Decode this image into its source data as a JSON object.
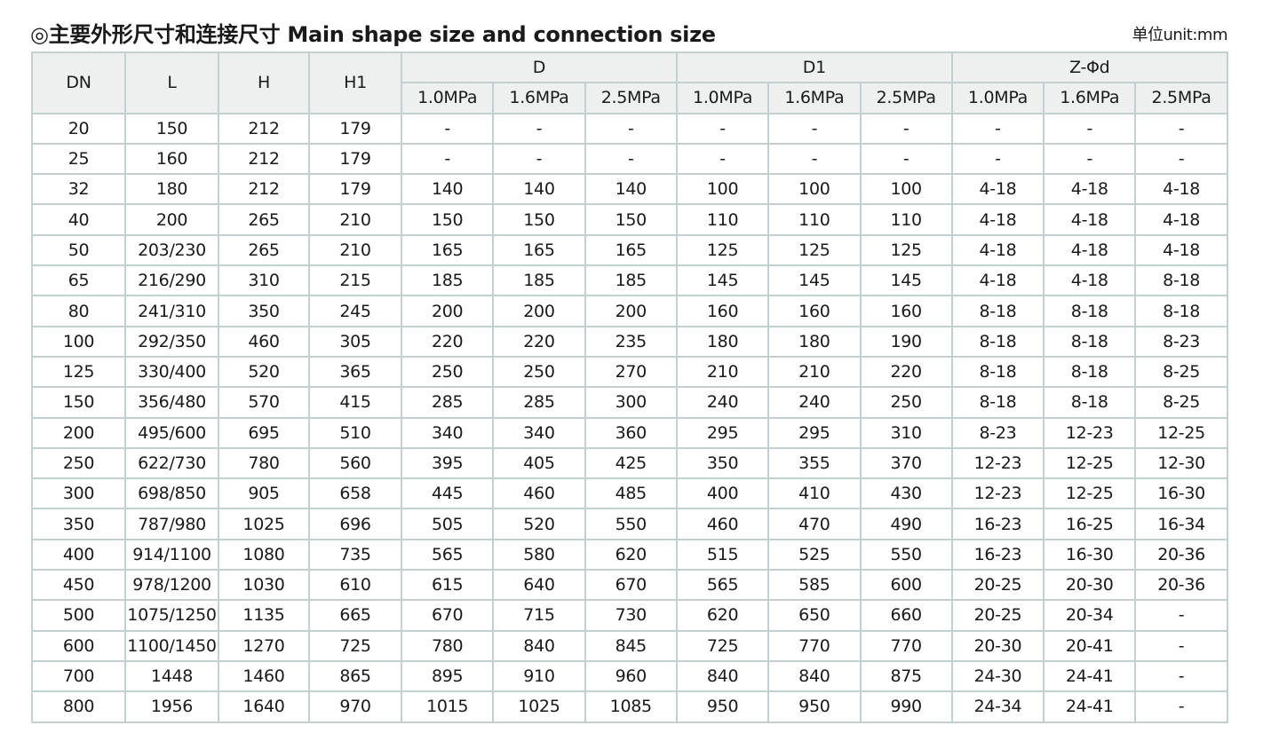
{
  "title": "◎主要外形尺寸和连接尺寸 Main shape size and connection size",
  "unit": "单位unit:mm",
  "table": {
    "headers": [
      "DN",
      "L",
      "H",
      "H1"
    ],
    "groups": [
      "D",
      "D1",
      "Z-Φd"
    ],
    "pressures": [
      "1.0MPa",
      "1.6MPa",
      "2.5MPa"
    ],
    "rows": [
      [
        "20",
        "150",
        "212",
        "179",
        "-",
        "-",
        "-",
        "-",
        "-",
        "-",
        "-",
        "-",
        "-"
      ],
      [
        "25",
        "160",
        "212",
        "179",
        "-",
        "-",
        "-",
        "-",
        "-",
        "-",
        "-",
        "-",
        "-"
      ],
      [
        "32",
        "180",
        "212",
        "179",
        "140",
        "140",
        "140",
        "100",
        "100",
        "100",
        "4-18",
        "4-18",
        "4-18"
      ],
      [
        "40",
        "200",
        "265",
        "210",
        "150",
        "150",
        "150",
        "110",
        "110",
        "110",
        "4-18",
        "4-18",
        "4-18"
      ],
      [
        "50",
        "203/230",
        "265",
        "210",
        "165",
        "165",
        "165",
        "125",
        "125",
        "125",
        "4-18",
        "4-18",
        "4-18"
      ],
      [
        "65",
        "216/290",
        "310",
        "215",
        "185",
        "185",
        "185",
        "145",
        "145",
        "145",
        "4-18",
        "4-18",
        "8-18"
      ],
      [
        "80",
        "241/310",
        "350",
        "245",
        "200",
        "200",
        "200",
        "160",
        "160",
        "160",
        "8-18",
        "8-18",
        "8-18"
      ],
      [
        "100",
        "292/350",
        "460",
        "305",
        "220",
        "220",
        "235",
        "180",
        "180",
        "190",
        "8-18",
        "8-18",
        "8-23"
      ],
      [
        "125",
        "330/400",
        "520",
        "365",
        "250",
        "250",
        "270",
        "210",
        "210",
        "220",
        "8-18",
        "8-18",
        "8-25"
      ],
      [
        "150",
        "356/480",
        "570",
        "415",
        "285",
        "285",
        "300",
        "240",
        "240",
        "250",
        "8-18",
        "8-18",
        "8-25"
      ],
      [
        "200",
        "495/600",
        "695",
        "510",
        "340",
        "340",
        "360",
        "295",
        "295",
        "310",
        "8-23",
        "12-23",
        "12-25"
      ],
      [
        "250",
        "622/730",
        "780",
        "560",
        "395",
        "405",
        "425",
        "350",
        "355",
        "370",
        "12-23",
        "12-25",
        "12-30"
      ],
      [
        "300",
        "698/850",
        "905",
        "658",
        "445",
        "460",
        "485",
        "400",
        "410",
        "430",
        "12-23",
        "12-25",
        "16-30"
      ],
      [
        "350",
        "787/980",
        "1025",
        "696",
        "505",
        "520",
        "550",
        "460",
        "470",
        "490",
        "16-23",
        "16-25",
        "16-34"
      ],
      [
        "400",
        "914/1100",
        "1080",
        "735",
        "565",
        "580",
        "620",
        "515",
        "525",
        "550",
        "16-23",
        "16-30",
        "20-36"
      ],
      [
        "450",
        "978/1200",
        "1030",
        "610",
        "615",
        "640",
        "670",
        "565",
        "585",
        "600",
        "20-25",
        "20-30",
        "20-36"
      ],
      [
        "500",
        "1075/1250",
        "1135",
        "665",
        "670",
        "715",
        "730",
        "620",
        "650",
        "660",
        "20-25",
        "20-34",
        "-"
      ],
      [
        "600",
        "1100/1450",
        "1270",
        "725",
        "780",
        "840",
        "845",
        "725",
        "770",
        "770",
        "20-30",
        "20-41",
        "-"
      ],
      [
        "700",
        "1448",
        "1460",
        "865",
        "895",
        "910",
        "960",
        "840",
        "840",
        "875",
        "24-30",
        "24-41",
        "-"
      ],
      [
        "800",
        "1956",
        "1640",
        "970",
        "1015",
        "1025",
        "1085",
        "950",
        "950",
        "990",
        "24-34",
        "24-41",
        "-"
      ]
    ]
  }
}
